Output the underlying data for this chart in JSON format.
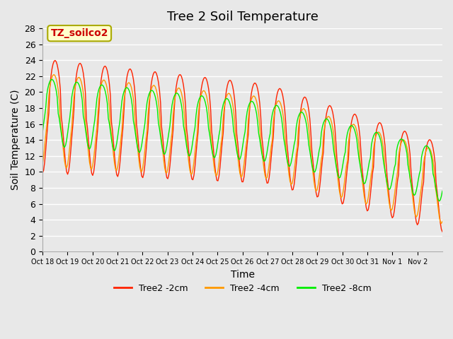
{
  "title": "Tree 2 Soil Temperature",
  "xlabel": "Time",
  "ylabel": "Soil Temperature (C)",
  "annotation_text": "TZ_soilco2",
  "annotation_bg": "#ffffcc",
  "annotation_border": "#aaaa00",
  "ylim": [
    0,
    28
  ],
  "yticks": [
    0,
    2,
    4,
    6,
    8,
    10,
    12,
    14,
    16,
    18,
    20,
    22,
    24,
    26,
    28
  ],
  "xtick_labels": [
    "Oct 18",
    "Oct 19",
    "Oct 20",
    "Oct 21",
    "Oct 22",
    "Oct 23",
    "Oct 24",
    "Oct 25",
    "Oct 26",
    "Oct 27",
    "Oct 28",
    "Oct 29",
    "Oct 30",
    "Oct 31",
    "Nov 1",
    "Nov 2"
  ],
  "bg_color": "#e8e8e8",
  "plot_bg_color": "#e8e8e8",
  "grid_color": "#ffffff",
  "line_colors": {
    "2cm": "#ff2200",
    "4cm": "#ff9900",
    "8cm": "#00ee00"
  },
  "legend_labels": [
    "Tree2 -2cm",
    "Tree2 -4cm",
    "Tree2 -8cm"
  ],
  "title_fontsize": 13,
  "axis_label_fontsize": 10
}
